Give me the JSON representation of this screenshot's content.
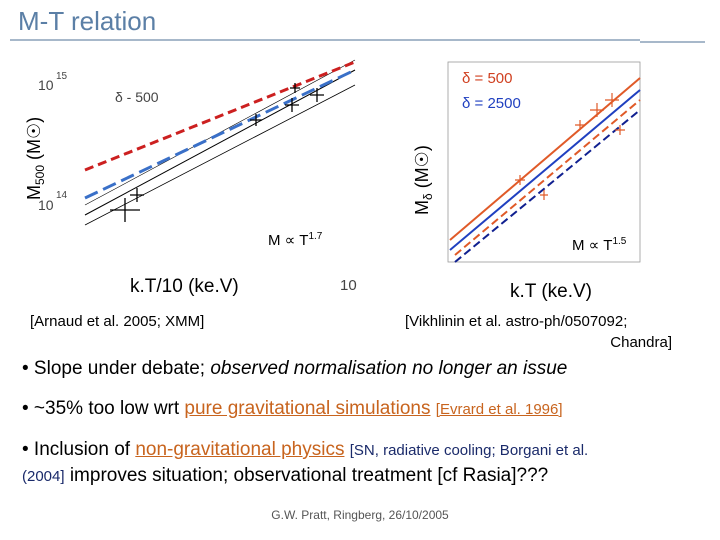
{
  "title": "M-T relation",
  "figures": [
    {
      "y_label": [
        "M",
        "500",
        " (M☉)"
      ],
      "tick_labels": [
        "10",
        "15",
        "10",
        "14",
        "10"
      ],
      "inset_label": "δ - 500",
      "relation": [
        "M ∝ T",
        "1.7"
      ],
      "x_label": "k.T/10 (ke.V)",
      "citation": "[Arnaud et al. 2005; XMM]"
    },
    {
      "y_label": [
        "M",
        "δ",
        " (M☉)"
      ],
      "legend": [
        "δ = 500",
        "δ = 2500"
      ],
      "relation": [
        "M ∝ T",
        "1.5"
      ],
      "x_label": "k.T (ke.V)",
      "citation": [
        "[Vikhlinin et al. astro-ph/0507092;",
        "Chandra]"
      ]
    }
  ],
  "bullets": [
    [
      "• Slope under debate; ",
      "observed normalisation no longer an issue"
    ],
    [
      "• ~35% too low wrt ",
      "pure gravitational simulations",
      " ",
      "[Evrard et al. 1996]"
    ],
    [
      "• Inclusion of ",
      "non-gravitational physics",
      " ",
      "[SN, radiative cooling; Borgani et al.",
      "(2004]",
      " improves situation; observational treatment [cf Rasia]???"
    ]
  ],
  "footer": "G.W. Pratt, Ringberg, 26/10/2005"
}
